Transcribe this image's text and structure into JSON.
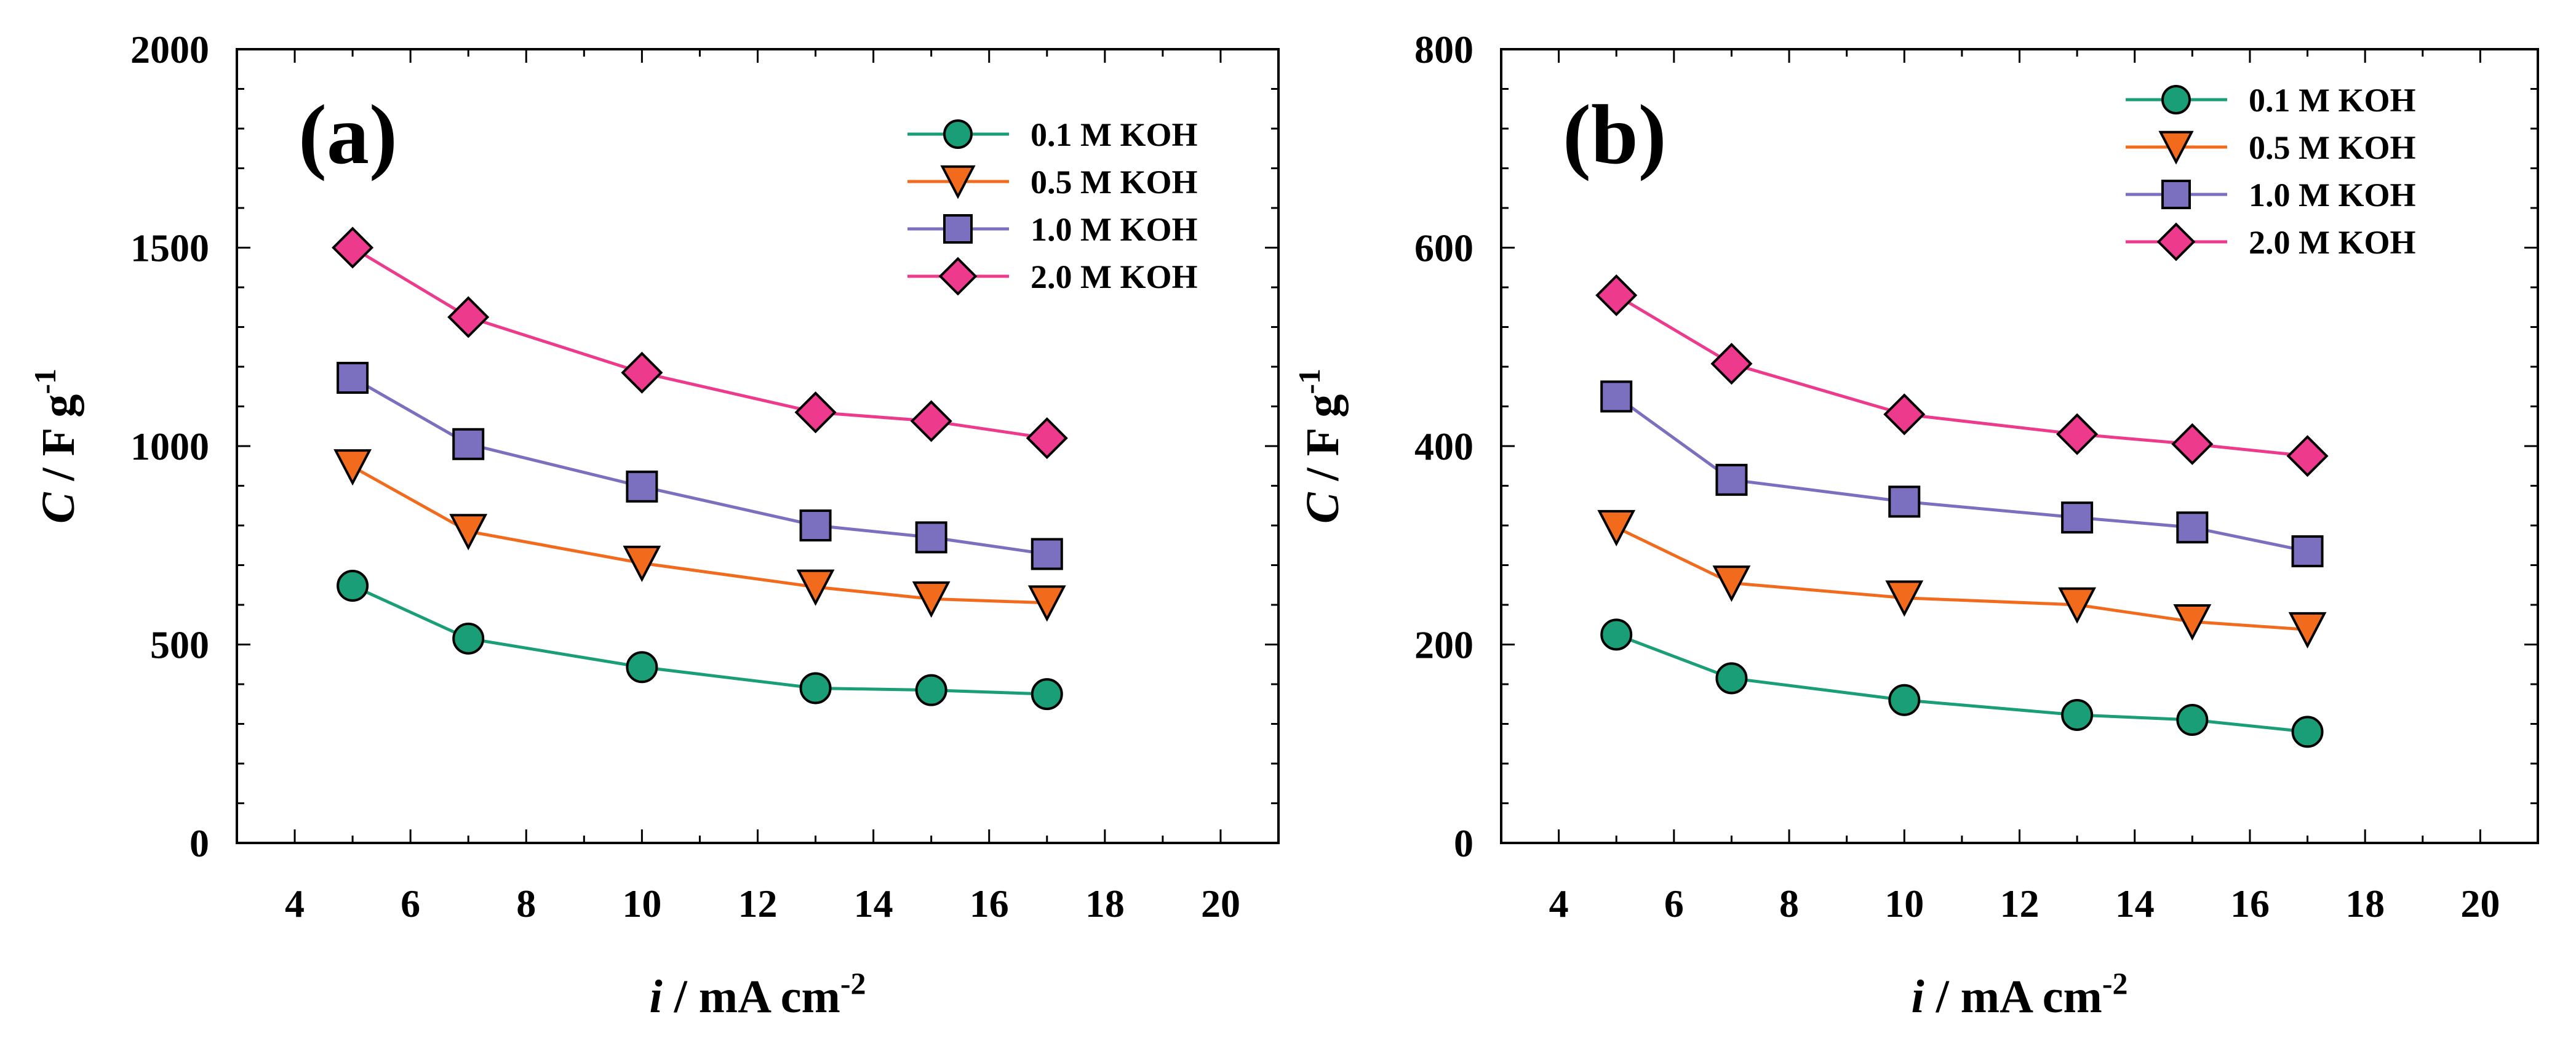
{
  "chart_data": [
    {
      "type": "line",
      "panel_label": "(a)",
      "xlabel": "i / mA cm-2",
      "ylabel": "C / F g-1",
      "xlim": [
        3,
        21
      ],
      "ylim": [
        0,
        2000
      ],
      "x_ticks": [
        4,
        6,
        8,
        10,
        12,
        14,
        16,
        18,
        20
      ],
      "y_ticks": [
        0,
        500,
        1000,
        1500,
        2000
      ],
      "legend_position": "top-right",
      "x": [
        5,
        7,
        10,
        13,
        15,
        17
      ],
      "series": [
        {
          "name": "0.1 M KOH",
          "marker": "circle",
          "color": "#1a9e77",
          "values": [
            648,
            515,
            443,
            390,
            385,
            375
          ]
        },
        {
          "name": "0.5 M KOH",
          "marker": "triangle-down",
          "color": "#f26b1d",
          "values": [
            948,
            785,
            705,
            645,
            615,
            605
          ]
        },
        {
          "name": "1.0 M KOH",
          "marker": "square",
          "color": "#7b6fbf",
          "values": [
            1172,
            1005,
            898,
            800,
            770,
            728
          ]
        },
        {
          "name": "2.0 M KOH",
          "marker": "diamond",
          "color": "#ee3a8c",
          "values": [
            1500,
            1325,
            1185,
            1085,
            1063,
            1020
          ]
        }
      ]
    },
    {
      "type": "line",
      "panel_label": "(b)",
      "xlabel": "i / mA cm-2",
      "ylabel": "C / F g-1",
      "xlim": [
        3,
        21
      ],
      "ylim": [
        0,
        800
      ],
      "x_ticks": [
        4,
        6,
        8,
        10,
        12,
        14,
        16,
        18,
        20
      ],
      "y_ticks": [
        0,
        200,
        400,
        600,
        800
      ],
      "legend_position": "top-right",
      "x": [
        5,
        7,
        10,
        13,
        15,
        17
      ],
      "series": [
        {
          "name": "0.1 M KOH",
          "marker": "circle",
          "color": "#1a9e77",
          "values": [
            210,
            166,
            144,
            129,
            124,
            112
          ]
        },
        {
          "name": "0.5 M KOH",
          "marker": "triangle-down",
          "color": "#f26b1d",
          "values": [
            318,
            262,
            247,
            240,
            223,
            215
          ]
        },
        {
          "name": "1.0 M KOH",
          "marker": "square",
          "color": "#7b6fbf",
          "values": [
            450,
            366,
            344,
            328,
            318,
            294
          ]
        },
        {
          "name": "2.0 M KOH",
          "marker": "diamond",
          "color": "#ee3a8c",
          "values": [
            552,
            483,
            432,
            412,
            402,
            390
          ]
        }
      ]
    }
  ]
}
